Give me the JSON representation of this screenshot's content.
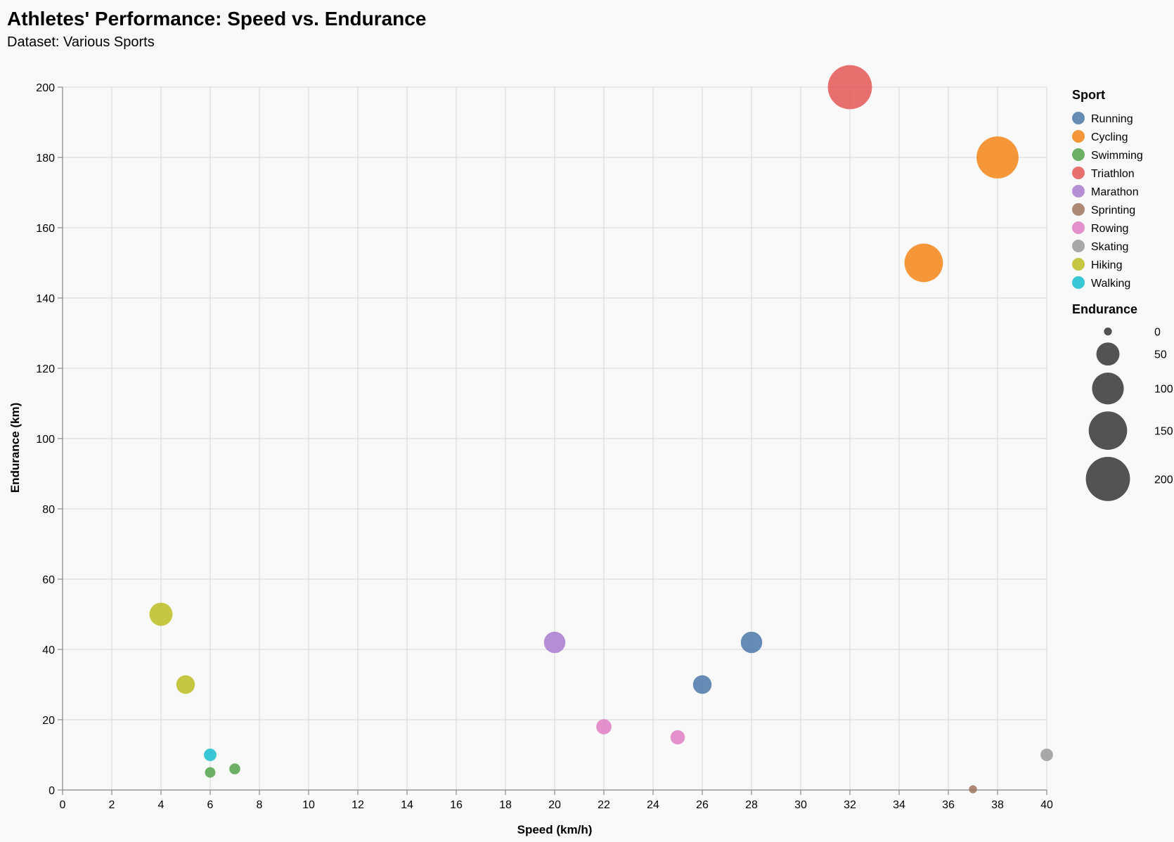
{
  "chart_data": {
    "type": "scatter",
    "title": "Athletes' Performance: Speed vs. Endurance",
    "subtitle": "Dataset: Various Sports",
    "xlabel": "Speed (km/h)",
    "ylabel": "Endurance (km)",
    "xlim": [
      0,
      40
    ],
    "ylim": [
      0,
      200
    ],
    "xticks": [
      0,
      2,
      4,
      6,
      8,
      10,
      12,
      14,
      16,
      18,
      20,
      22,
      24,
      26,
      28,
      30,
      32,
      34,
      36,
      38,
      40
    ],
    "yticks": [
      0,
      20,
      40,
      60,
      80,
      100,
      120,
      140,
      160,
      180,
      200
    ],
    "grid": true,
    "legend_position": "right",
    "color_legend": {
      "title": "Sport",
      "entries": [
        {
          "name": "Running",
          "color": "#4c78a8"
        },
        {
          "name": "Cycling",
          "color": "#f58518"
        },
        {
          "name": "Swimming",
          "color": "#54a24b"
        },
        {
          "name": "Triathlon",
          "color": "#e45756"
        },
        {
          "name": "Marathon",
          "color": "#a87cd0"
        },
        {
          "name": "Sprinting",
          "color": "#9d755d"
        },
        {
          "name": "Rowing",
          "color": "#e17ec6"
        },
        {
          "name": "Skating",
          "color": "#9a9a9a"
        },
        {
          "name": "Hiking",
          "color": "#bcbd22"
        },
        {
          "name": "Walking",
          "color": "#17becf"
        }
      ]
    },
    "size_legend": {
      "title": "Endurance",
      "values": [
        0,
        50,
        100,
        150,
        200
      ]
    },
    "points": [
      {
        "sport": "Running",
        "speed": 28,
        "endurance": 42
      },
      {
        "sport": "Running",
        "speed": 26,
        "endurance": 30
      },
      {
        "sport": "Cycling",
        "speed": 38,
        "endurance": 180
      },
      {
        "sport": "Cycling",
        "speed": 35,
        "endurance": 150
      },
      {
        "sport": "Swimming",
        "speed": 7,
        "endurance": 6
      },
      {
        "sport": "Swimming",
        "speed": 6,
        "endurance": 5
      },
      {
        "sport": "Triathlon",
        "speed": 32,
        "endurance": 200
      },
      {
        "sport": "Marathon",
        "speed": 20,
        "endurance": 42
      },
      {
        "sport": "Sprinting",
        "speed": 37,
        "endurance": 0.2
      },
      {
        "sport": "Rowing",
        "speed": 22,
        "endurance": 18
      },
      {
        "sport": "Rowing",
        "speed": 25,
        "endurance": 15
      },
      {
        "sport": "Skating",
        "speed": 40,
        "endurance": 10
      },
      {
        "sport": "Hiking",
        "speed": 4,
        "endurance": 50
      },
      {
        "sport": "Hiking",
        "speed": 5,
        "endurance": 30
      },
      {
        "sport": "Walking",
        "speed": 6,
        "endurance": 10
      }
    ]
  }
}
